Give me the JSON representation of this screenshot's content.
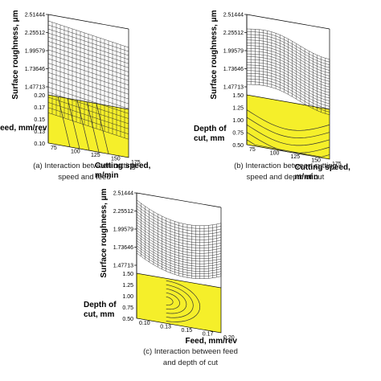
{
  "chart_data": [
    {
      "type": "surface",
      "caption": [
        "(a) Interaction between cutting",
        "speed and feed"
      ],
      "zlabel": "Surface roughness, μm",
      "xlabel": "Feed, mm/rev",
      "ylabel": [
        "Cutting speed,",
        "m/min"
      ],
      "z_ticks": [
        "2.51444",
        "2.25512",
        "1.99579",
        "1.73646",
        "1.47713"
      ],
      "x_ticks": [
        "0.20",
        "0.17",
        "0.15",
        "0.13",
        "0.10"
      ],
      "y_ticks": [
        "75",
        "100",
        "125",
        "150",
        "175"
      ],
      "zlim": [
        1.47713,
        2.51444
      ],
      "xlim": [
        0.1,
        0.2
      ],
      "ylim": [
        75,
        175
      ]
    },
    {
      "type": "surface",
      "caption": [
        "(b) Interaction between cutting",
        "speed and depth of cut"
      ],
      "zlabel": "Surface roughness, μm",
      "xlabel": [
        "Depth of",
        "cut, mm"
      ],
      "ylabel": [
        "Cutting speed,",
        "m/min"
      ],
      "z_ticks": [
        "2.51444",
        "2.25512",
        "1.99579",
        "1.73646",
        "1.47713"
      ],
      "x_ticks": [
        "1.50",
        "1.25",
        "1.00",
        "0.75",
        "0.50"
      ],
      "y_ticks": [
        "75",
        "100",
        "125",
        "150",
        "175"
      ],
      "zlim": [
        1.47713,
        2.51444
      ],
      "xlim": [
        0.5,
        1.5
      ],
      "ylim": [
        75,
        175
      ]
    },
    {
      "type": "surface",
      "caption": [
        "(c) Interaction between feed",
        "and depth of cut"
      ],
      "zlabel": "Surface roughness, μm",
      "xlabel": [
        "Depth of",
        "cut, mm"
      ],
      "ylabel": "Feed, mm/rev",
      "z_ticks": [
        "2.51444",
        "2.25512",
        "1.99579",
        "1.73646",
        "1.47713"
      ],
      "x_ticks": [
        "1.50",
        "1.25",
        "1.00",
        "0.75",
        "0.50"
      ],
      "y_ticks": [
        "0.10",
        "0.13",
        "0.15",
        "0.17",
        "0.20"
      ],
      "zlim": [
        1.47713,
        2.51444
      ],
      "xlim": [
        0.5,
        1.5
      ],
      "ylim": [
        0.1,
        0.2
      ]
    }
  ],
  "colors": {
    "floor": "#f5ef2a",
    "floor_dark": "#e3d81a",
    "mesh": "#222222"
  }
}
